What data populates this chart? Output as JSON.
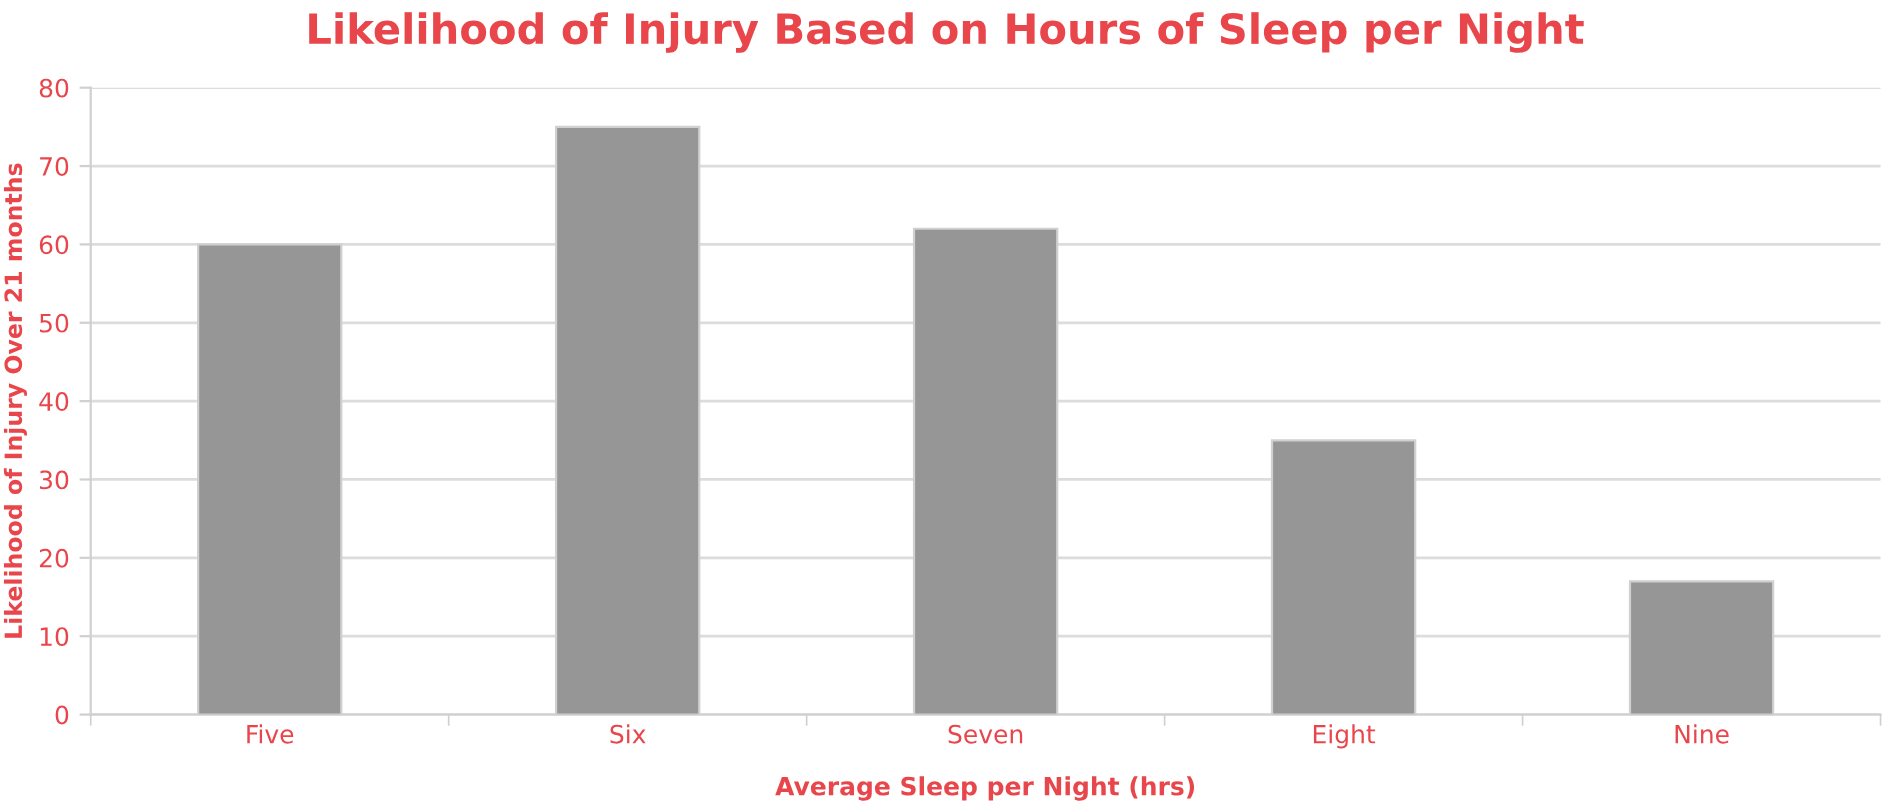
{
  "chart_data": {
    "type": "bar",
    "title": "Likelihood of Injury Based on Hours of Sleep per Night",
    "xlabel": "Average Sleep per Night (hrs)",
    "ylabel": "Likelihood of Injury Over 21 months",
    "categories": [
      "Five",
      "Six",
      "Seven",
      "Eight",
      "Nine"
    ],
    "values": [
      60,
      75,
      62,
      35,
      17
    ],
    "color": "#969696",
    "ylim": [
      0,
      80
    ],
    "yticks": [
      0,
      10,
      20,
      30,
      40,
      50,
      60,
      70,
      80
    ],
    "grid": "y"
  }
}
